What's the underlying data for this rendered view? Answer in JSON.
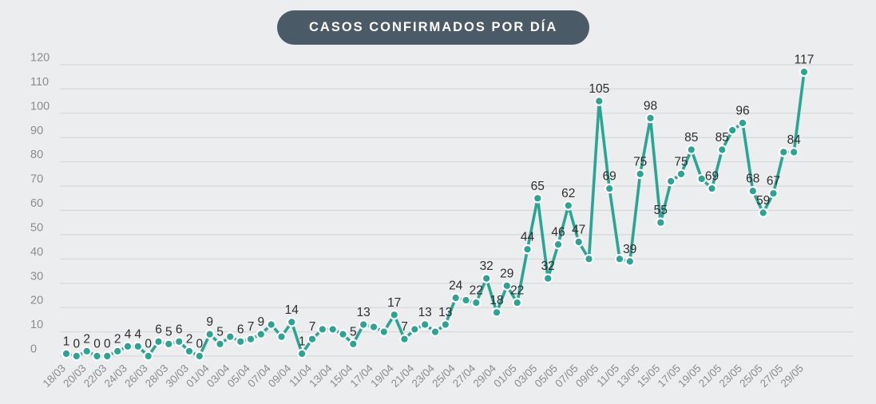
{
  "title": {
    "text": "CASOS CONFIRMADOS POR DÍA"
  },
  "colors": {
    "background": "#ecedee",
    "line": "#2aa593",
    "marker_fill": "#2aa593",
    "marker_ring": "#ffffff",
    "grid": "#d6d8d9",
    "axis_text": "#8a8d8f",
    "data_label": "#2e2e2e",
    "title_bg": "#4b5a67",
    "title_text": "#ffffff"
  },
  "chart_data": {
    "type": "line",
    "title": "CASOS CONFIRMADOS POR DÍA",
    "x": [
      "18/03",
      "19/03",
      "20/03",
      "21/03",
      "22/03",
      "23/03",
      "24/03",
      "25/03",
      "26/03",
      "27/03",
      "28/03",
      "29/03",
      "30/03",
      "31/03",
      "01/04",
      "02/04",
      "03/04",
      "04/04",
      "05/04",
      "06/04",
      "07/04",
      "08/04",
      "09/04",
      "10/04",
      "11/04",
      "12/04",
      "13/04",
      "14/04",
      "15/04",
      "16/04",
      "17/04",
      "18/04",
      "19/04",
      "20/04",
      "21/04",
      "22/04",
      "23/04",
      "24/04",
      "25/04",
      "26/04",
      "27/04",
      "28/04",
      "29/04",
      "30/04",
      "01/05",
      "02/05",
      "03/05",
      "04/05",
      "05/05",
      "06/05",
      "07/05",
      "08/05",
      "09/05",
      "10/05",
      "11/05",
      "12/05",
      "13/05",
      "14/05",
      "15/05",
      "16/05",
      "17/05",
      "18/05",
      "19/05",
      "20/05",
      "21/05",
      "22/05",
      "23/05",
      "24/05",
      "25/05",
      "26/05",
      "27/05",
      "28/05",
      "29/05"
    ],
    "values": [
      1,
      0,
      2,
      0,
      0,
      2,
      4,
      4,
      0,
      6,
      5,
      6,
      2,
      0,
      9,
      5,
      8,
      6,
      7,
      9,
      13,
      8,
      14,
      1,
      7,
      11,
      11,
      9,
      5,
      13,
      12,
      10,
      17,
      7,
      11,
      13,
      10,
      13,
      24,
      23,
      22,
      32,
      18,
      29,
      22,
      44,
      65,
      32,
      46,
      62,
      47,
      40,
      105,
      69,
      40,
      39,
      75,
      98,
      55,
      72,
      75,
      85,
      73,
      69,
      85,
      93,
      96,
      68,
      59,
      67,
      84,
      84,
      117
    ],
    "hidden_label_indices": [
      16,
      20,
      21,
      25,
      26,
      27,
      30,
      31,
      34,
      36,
      39,
      51,
      54,
      59,
      62,
      65,
      70
    ],
    "x_tick_every": 2,
    "x_tick_rotation": -45,
    "ylim": [
      0,
      120
    ],
    "y_tick_step": 10,
    "grid": true,
    "legend": false,
    "marker": "circle",
    "point_labels": true
  }
}
